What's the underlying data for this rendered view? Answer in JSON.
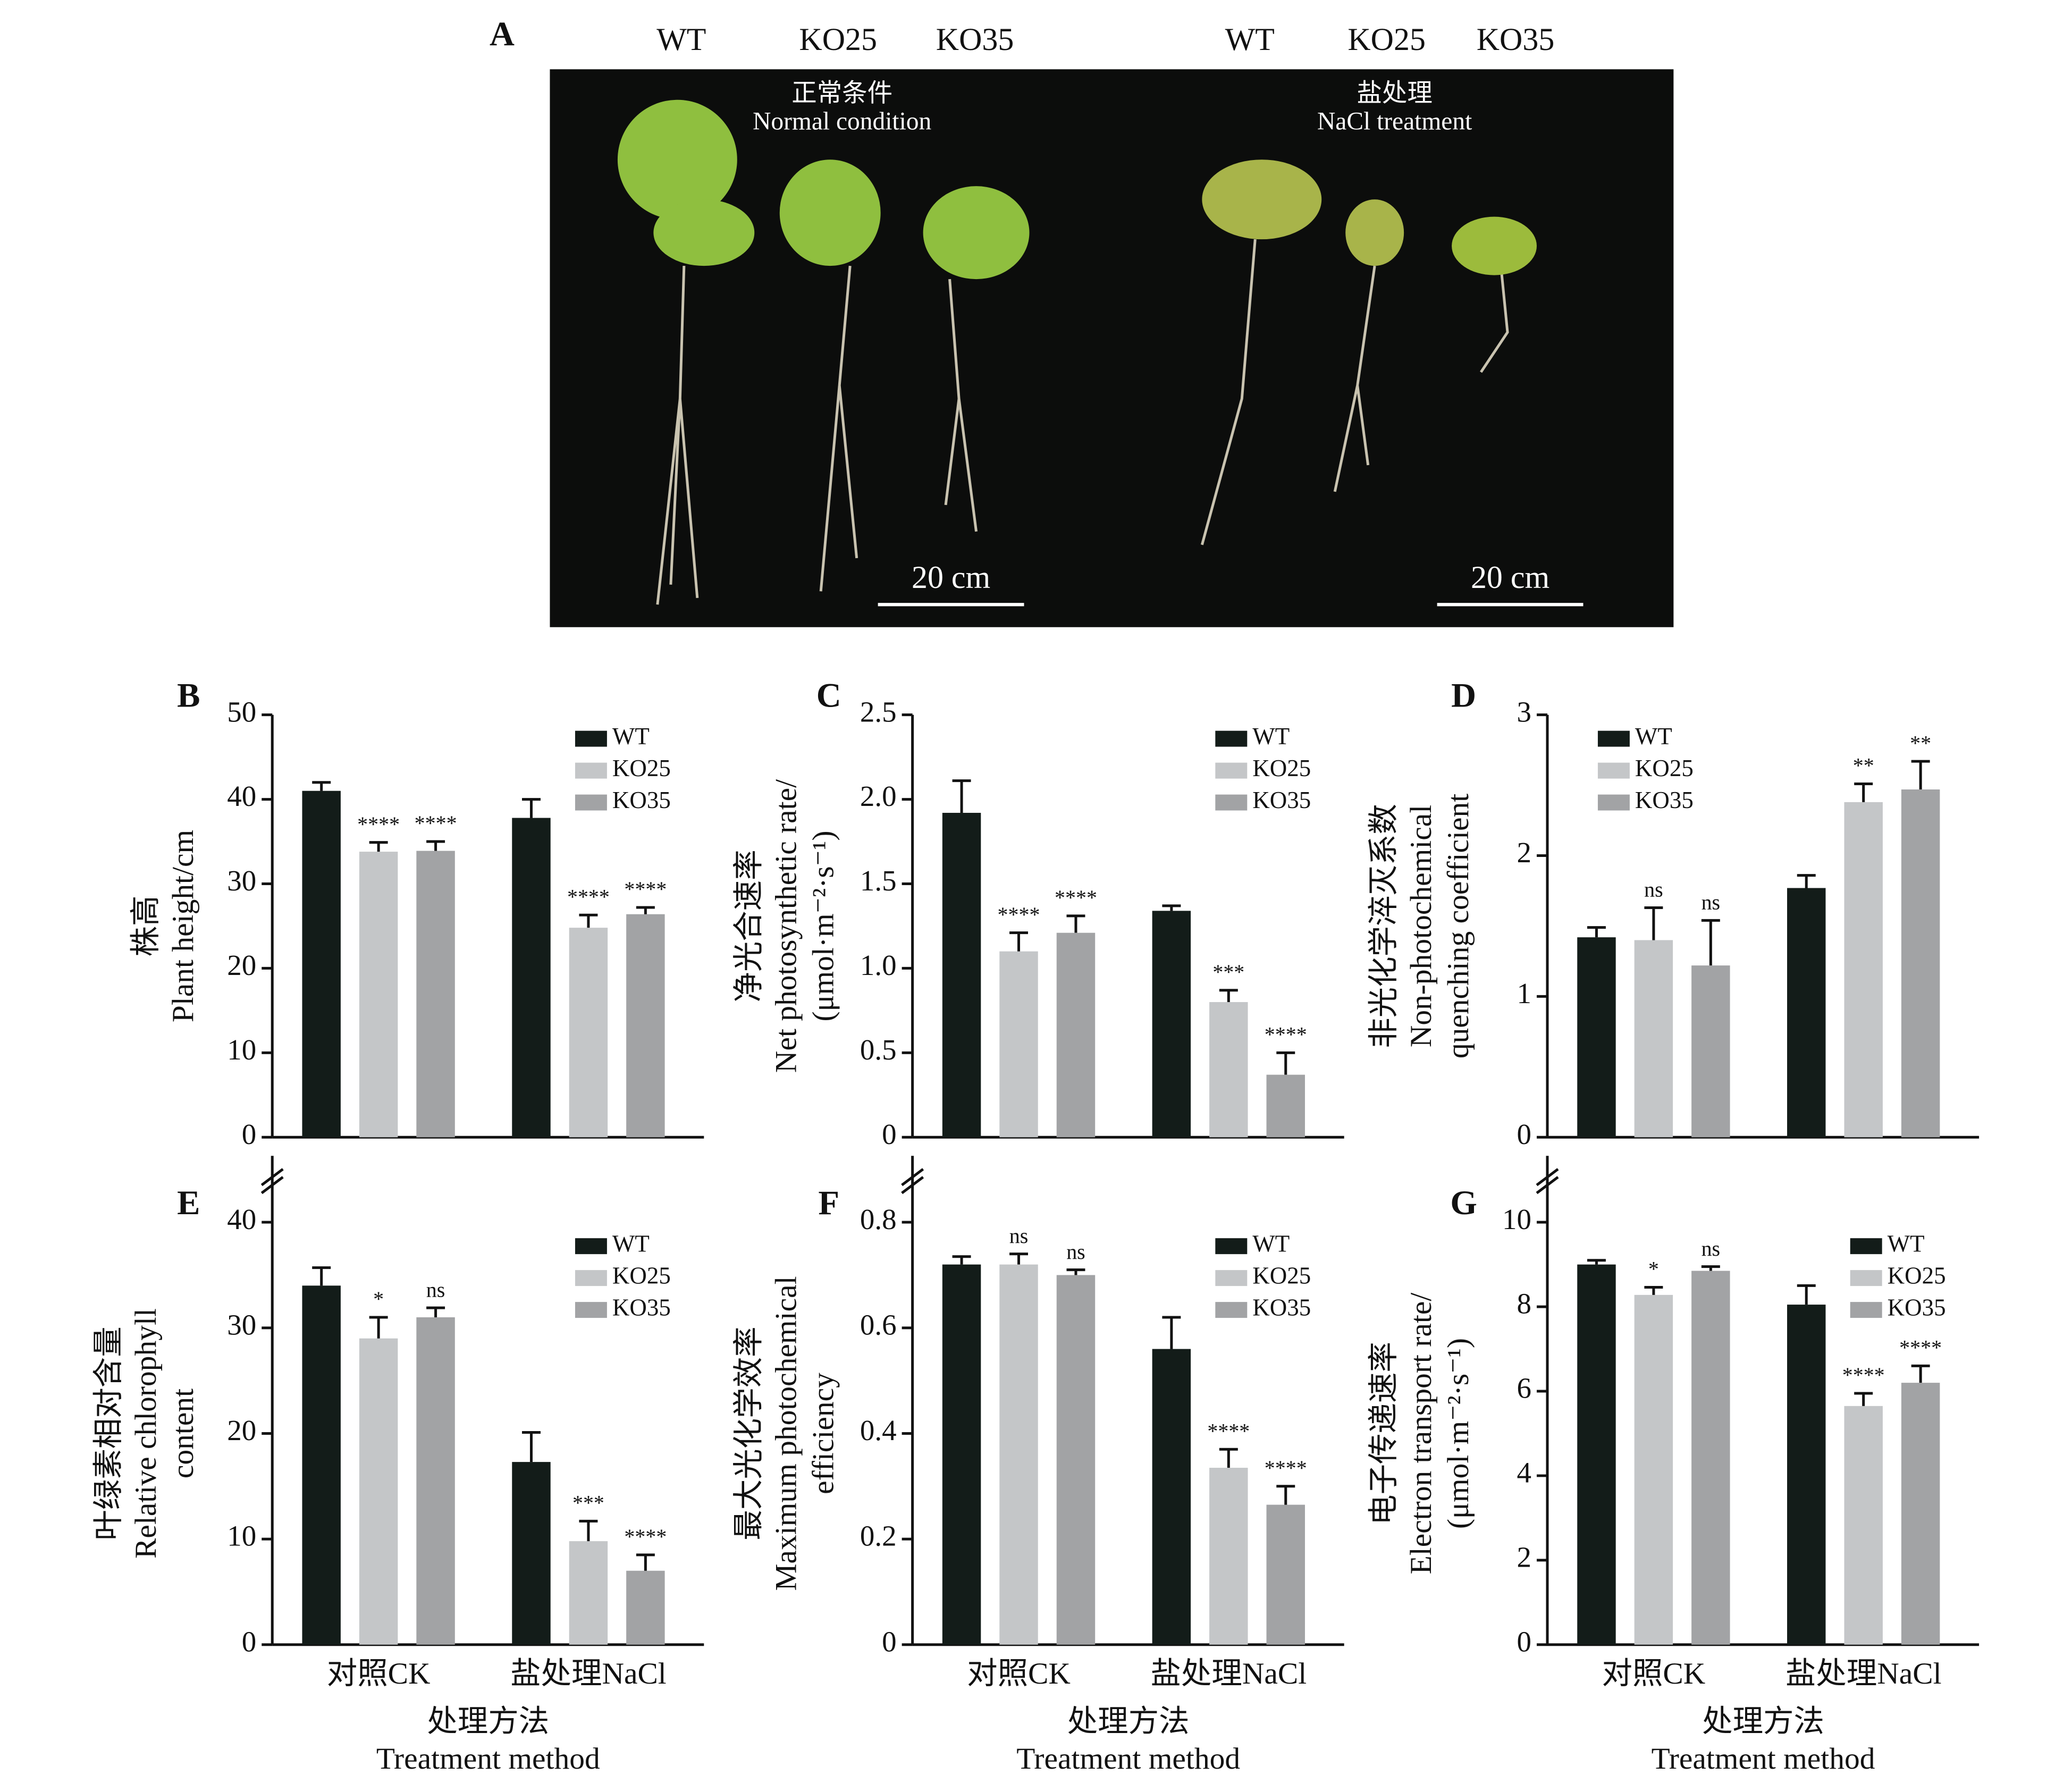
{
  "photo": {
    "label": "A",
    "columns": [
      "WT",
      "KO25",
      "KO35",
      "WT",
      "KO25",
      "KO35"
    ],
    "normal": [
      "正常条件",
      "Normal condition"
    ],
    "salt": [
      "盐处理",
      "NaCl treatment"
    ],
    "scale": [
      "20 cm",
      "20 cm"
    ]
  },
  "chart_data": [
    {
      "type": "bar",
      "label": "B",
      "categories": [
        null,
        null
      ],
      "ylabel": [
        "株高",
        "Plant height/cm"
      ],
      "ylim": [
        0,
        50
      ],
      "yticks": [
        0,
        10,
        20,
        30,
        40,
        50
      ],
      "legend": "upper right",
      "series": [
        {
          "name": "WT",
          "color": "#131c19",
          "values": [
            41,
            37.8
          ],
          "errors": [
            1,
            2.2
          ]
        },
        {
          "name": "KO25",
          "color": "#c4c6c8",
          "values": [
            33.8,
            24.8
          ],
          "errors": [
            1.1,
            1.5
          ],
          "significance": [
            "****",
            "****"
          ]
        },
        {
          "name": "KO35",
          "color": "#a2a3a5",
          "values": [
            33.9,
            26.4
          ],
          "errors": [
            1.1,
            0.8
          ],
          "significance": [
            "****",
            "****"
          ]
        }
      ]
    },
    {
      "type": "bar",
      "label": "C",
      "categories": [
        null,
        null
      ],
      "ylabel": [
        "净光合速率",
        "Net photosynthetic rate/",
        "(μmol·m⁻²·s⁻¹)"
      ],
      "ylim": [
        0,
        2.5
      ],
      "yticks": [
        0,
        0.5,
        {
          "value": 1,
          "label": "1.0"
        },
        1.5,
        {
          "value": 2,
          "label": "2.0"
        },
        2.5
      ],
      "legend": "upper right",
      "series": [
        {
          "name": "WT",
          "color": "#131c19",
          "values": [
            1.92,
            1.34
          ],
          "errors": [
            0.19,
            0.03
          ]
        },
        {
          "name": "KO25",
          "color": "#c4c6c8",
          "values": [
            1.1,
            0.8
          ],
          "errors": [
            0.11,
            0.07
          ],
          "significance": [
            "****",
            "***"
          ]
        },
        {
          "name": "KO35",
          "color": "#a2a3a5",
          "values": [
            1.21,
            0.37
          ],
          "errors": [
            0.1,
            0.13
          ],
          "significance": [
            "****",
            "****"
          ]
        }
      ]
    },
    {
      "type": "bar",
      "label": "D",
      "categories": [
        null,
        null
      ],
      "ylabel": [
        "非光化学淬灭系数",
        "Non-photochemical",
        "quenching coefficient"
      ],
      "ylim": [
        0,
        3
      ],
      "yticks": [
        0,
        1,
        2,
        3
      ],
      "legend": "upper left",
      "series": [
        {
          "name": "WT",
          "color": "#131c19",
          "values": [
            1.42,
            1.77
          ],
          "errors": [
            0.07,
            0.09
          ]
        },
        {
          "name": "KO25",
          "color": "#c4c6c8",
          "values": [
            1.4,
            2.38
          ],
          "errors": [
            0.23,
            0.13
          ],
          "significance": [
            "ns",
            "**"
          ]
        },
        {
          "name": "KO35",
          "color": "#a2a3a5",
          "values": [
            1.22,
            2.47
          ],
          "errors": [
            0.32,
            0.2
          ],
          "significance": [
            "ns",
            "**"
          ]
        }
      ]
    },
    {
      "type": "bar",
      "label": "E",
      "categories": [
        "对照CK",
        "盐处理NaCl"
      ],
      "ylabel": [
        "叶绿素相对含量",
        "Relative chlorophyll",
        "content"
      ],
      "xlabel": [
        "处理方法",
        "Treatment method"
      ],
      "axis_break": true,
      "ylim": [
        0,
        40
      ],
      "yticks": [
        0,
        10,
        20,
        30,
        40
      ],
      "legend": "upper right",
      "series": [
        {
          "name": "WT",
          "color": "#131c19",
          "values": [
            34,
            17.3
          ],
          "errors": [
            1.7,
            2.8
          ]
        },
        {
          "name": "KO25",
          "color": "#c4c6c8",
          "values": [
            29,
            9.8
          ],
          "errors": [
            2,
            1.9
          ],
          "significance": [
            "*",
            "***"
          ]
        },
        {
          "name": "KO35",
          "color": "#a2a3a5",
          "values": [
            31,
            7
          ],
          "errors": [
            0.9,
            1.5
          ],
          "significance": [
            "ns",
            "****"
          ]
        }
      ]
    },
    {
      "type": "bar",
      "label": "F",
      "categories": [
        "对照CK",
        "盐处理NaCl"
      ],
      "ylabel": [
        "最大光化学效率",
        "Maximum photochemical",
        "efficiency"
      ],
      "xlabel": [
        "处理方法",
        "Treatment method"
      ],
      "axis_break": true,
      "ylim": [
        0,
        0.8
      ],
      "yticks": [
        0,
        0.2,
        0.4,
        0.6,
        0.8
      ],
      "legend": "upper right",
      "series": [
        {
          "name": "WT",
          "color": "#131c19",
          "values": [
            0.72,
            0.56
          ],
          "errors": [
            0.015,
            0.06
          ]
        },
        {
          "name": "KO25",
          "color": "#c4c6c8",
          "values": [
            0.72,
            0.335
          ],
          "errors": [
            0.02,
            0.035
          ],
          "significance": [
            "ns",
            "****"
          ]
        },
        {
          "name": "KO35",
          "color": "#a2a3a5",
          "values": [
            0.7,
            0.265
          ],
          "errors": [
            0.01,
            0.035
          ],
          "significance": [
            "ns",
            "****"
          ]
        }
      ]
    },
    {
      "type": "bar",
      "label": "G",
      "categories": [
        "对照CK",
        "盐处理NaCl"
      ],
      "ylabel": [
        "电子传递速率",
        "Electron transport rate/",
        "(μmol·m⁻²·s⁻¹)"
      ],
      "xlabel": [
        "处理方法",
        "Treatment method"
      ],
      "axis_break": true,
      "ylim": [
        0,
        10
      ],
      "yticks": [
        0,
        2,
        4,
        6,
        8,
        10
      ],
      "legend": "upper right",
      "series": [
        {
          "name": "WT",
          "color": "#131c19",
          "values": [
            9,
            8.05
          ],
          "errors": [
            0.1,
            0.45
          ]
        },
        {
          "name": "KO25",
          "color": "#c4c6c8",
          "values": [
            8.28,
            5.65
          ],
          "errors": [
            0.18,
            0.3
          ],
          "significance": [
            "*",
            "****"
          ]
        },
        {
          "name": "KO35",
          "color": "#a2a3a5",
          "values": [
            8.85,
            6.2
          ],
          "errors": [
            0.1,
            0.4
          ],
          "significance": [
            "ns",
            "****"
          ]
        }
      ]
    }
  ]
}
